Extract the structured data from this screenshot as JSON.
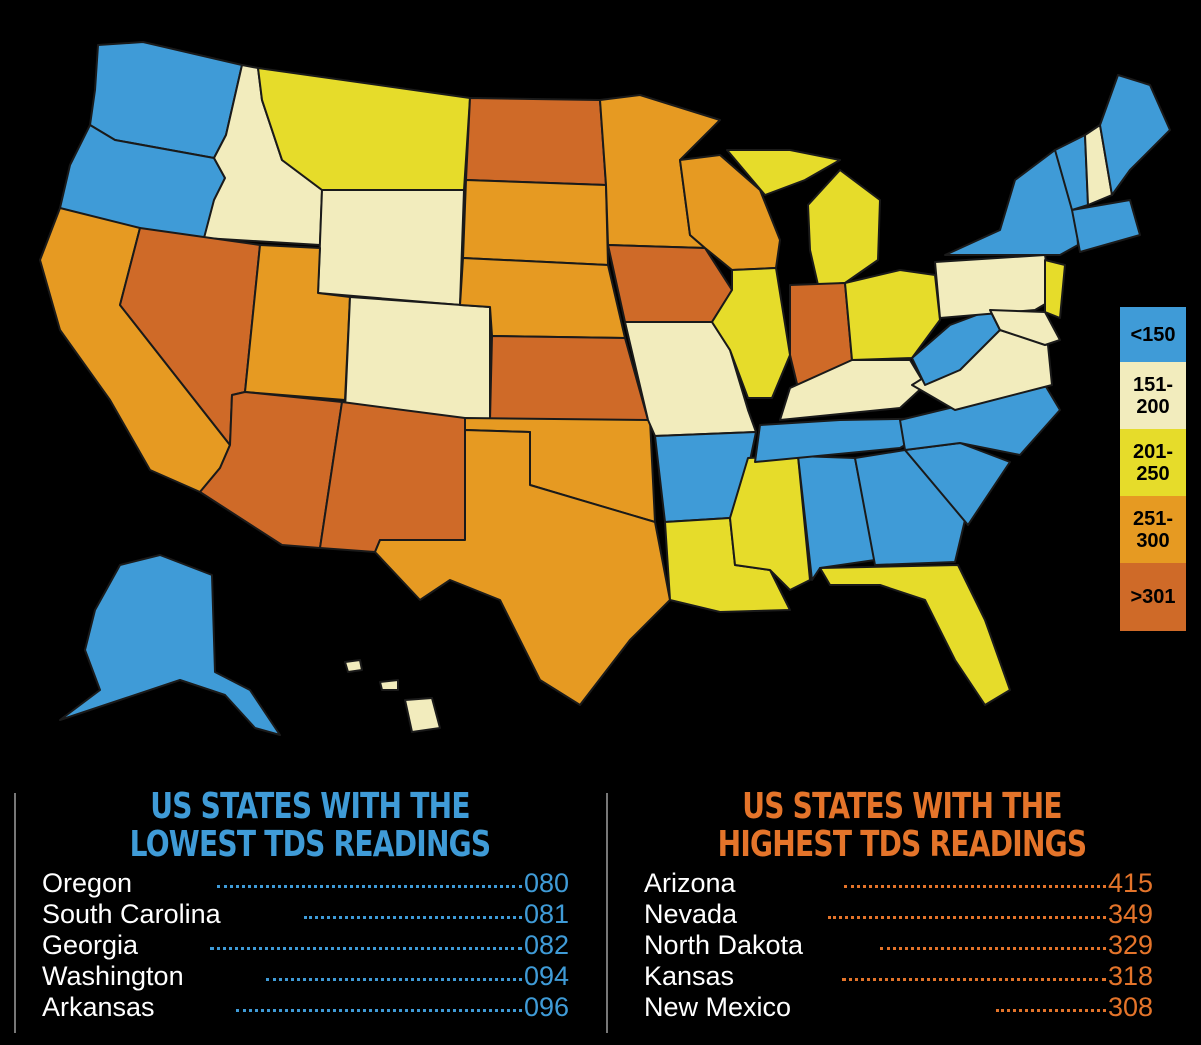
{
  "legend": [
    {
      "label": "<150",
      "color": "#3f9bd7"
    },
    {
      "label": "151-\n200",
      "color": "#f2ecbd"
    },
    {
      "label": "201-\n250",
      "color": "#e6dc2a"
    },
    {
      "label": "251-\n300",
      "color": "#e69a22"
    },
    {
      "label": ">301",
      "color": "#cf6a28"
    }
  ],
  "lowest": {
    "title_line1": "US STATES WITH THE",
    "title_line2": "LOWEST TDS READINGS",
    "rows": [
      {
        "state": "Oregon",
        "value": "080"
      },
      {
        "state": "South Carolina",
        "value": "081"
      },
      {
        "state": "Georgia",
        "value": "082"
      },
      {
        "state": "Washington",
        "value": "094"
      },
      {
        "state": "Arkansas",
        "value": "096"
      }
    ]
  },
  "highest": {
    "title_line1": "US STATES WITH THE",
    "title_line2": "HIGHEST TDS READINGS",
    "rows": [
      {
        "state": "Arizona",
        "value": "415"
      },
      {
        "state": "Nevada",
        "value": "349"
      },
      {
        "state": "North Dakota",
        "value": "329"
      },
      {
        "state": "Kansas",
        "value": "318"
      },
      {
        "state": "New Mexico",
        "value": "308"
      }
    ]
  }
}
